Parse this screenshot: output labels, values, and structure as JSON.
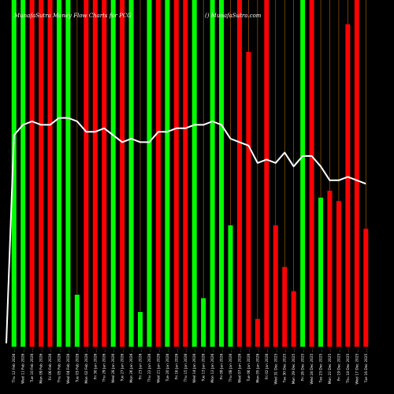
{
  "chart_data": {
    "type": "bar",
    "title": "MunafaSutra Money Flow Charts for PCG",
    "brand": "() MunafaSutra.com",
    "categories": [
      "Thu 12 Feb 2026 ...",
      "Wed 11 Feb 2026 ...",
      "Tue 10 Feb 2026 ...",
      "Mon 09 Feb 2026 ...",
      "Fri 06 Feb 2026 ...",
      "Thu 05 Feb 2026 ...",
      "Wed 04 Feb 2026 ...",
      "Tue 03 Feb 2026 ...",
      "Mon 02 Feb 2026 ...",
      "Fri 30 Jan 2026 ...",
      "Thu 29 Jan 2026 ...",
      "Wed 28 Jan 2026 ...",
      "Tue 27 Jan 2026 ...",
      "Mon 26 Jan 2026 ...",
      "Fri 23 Jan 2026 ...",
      "Thu 22 Jan 2026 ...",
      "Wed 21 Jan 2026 ...",
      "Tue 20 Jan 2026 ...",
      "Fri 16 Jan 2026 ...",
      "Thu 15 Jan 2026 ...",
      "Wed 14 Jan 2026 ...",
      "Tue 13 Jan 2026 ...",
      "Mon 12 Jan 2026 ...",
      "Fri 09 Jan 2026 ...",
      "Thu 08 Jan 2026 ...",
      "Wed 07 Jan 2026 ...",
      "Tue 06 Jan 2026 ...",
      "Mon 05 Jan 2026 ...",
      "Fri 02 Jan 2026 ...",
      "Wed 31 Dec 2025 ...",
      "Tue 30 Dec 2025 ...",
      "Mon 29 Dec 2025 ...",
      "Fri 26 Dec 2025 ...",
      "Wed 24 Dec 2025 ...",
      "Tue 23 Dec 2025 ...",
      "Mon 22 Dec 2025 ...",
      "Fri 19 Dec 2025 ...",
      "Thu 18 Dec 2025 ...",
      "Wed 17 Dec 2025 ...",
      "Tue 16 Dec 2025 ..."
    ],
    "ylim": [
      0,
      100
    ],
    "series": [
      {
        "role": "money-flow-bars",
        "values": [
          100,
          100,
          100,
          100,
          100,
          100,
          100,
          15,
          100,
          100,
          100,
          100,
          100,
          100,
          10,
          100,
          100,
          100,
          100,
          100,
          100,
          14,
          100,
          100,
          35,
          100,
          85,
          8,
          100,
          35,
          23,
          16,
          100,
          100,
          43,
          45,
          42,
          93,
          100,
          34
        ],
        "colors": [
          "green",
          "green",
          "red",
          "red",
          "red",
          "green",
          "green",
          "green",
          "red",
          "red",
          "red",
          "green",
          "red",
          "green",
          "green",
          "green",
          "red",
          "green",
          "red",
          "red",
          "green",
          "green",
          "green",
          "green",
          "green",
          "red",
          "red",
          "red",
          "red",
          "red",
          "red",
          "red",
          "green",
          "red",
          "green",
          "red",
          "red",
          "red",
          "red",
          "red"
        ]
      },
      {
        "role": "price-line",
        "values": [
          61,
          64,
          65,
          64,
          64,
          66,
          66,
          65,
          62,
          62,
          63,
          61,
          59,
          60,
          59,
          59,
          62,
          62,
          63,
          63,
          64,
          64,
          65,
          64,
          60,
          59,
          58,
          53,
          54,
          53,
          56,
          52,
          55,
          55,
          52,
          48,
          48,
          49,
          48,
          47
        ]
      }
    ],
    "colors": {
      "green": "#00ff00",
      "red": "#ff0000",
      "line": "#ffffff",
      "grid": "#ff9900",
      "background": "#000000"
    },
    "grid": true
  }
}
